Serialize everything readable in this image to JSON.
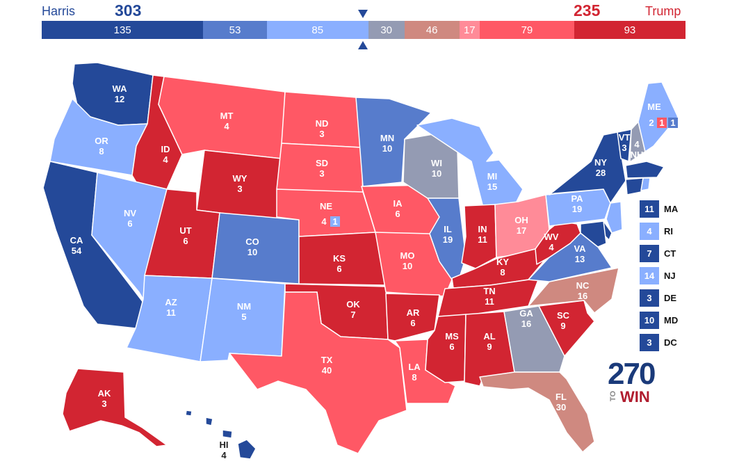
{
  "header": {
    "left_candidate": "Harris",
    "left_total": "303",
    "right_candidate": "Trump",
    "right_total": "235"
  },
  "colors": {
    "safe_d": "#244999",
    "likely_d": "#577ccc",
    "lean_d": "#8aafff",
    "tossup": "#949bb3",
    "tilt_r": "#cf8980",
    "lean_r_light": "#ff8b98",
    "likely_r": "#ff5865",
    "safe_r": "#d22532",
    "harris_text": "#244999",
    "trump_text": "#d22532"
  },
  "bar": [
    {
      "label": "135",
      "value": 135,
      "rating": "safe_d"
    },
    {
      "label": "53",
      "value": 53,
      "rating": "likely_d"
    },
    {
      "label": "85",
      "value": 85,
      "rating": "lean_d"
    },
    {
      "label": "30",
      "value": 30,
      "rating": "tossup"
    },
    {
      "label": "46",
      "value": 46,
      "rating": "tilt_r"
    },
    {
      "label": "17",
      "value": 17,
      "rating": "lean_r_light"
    },
    {
      "label": "79",
      "value": 79,
      "rating": "likely_r"
    },
    {
      "label": "93",
      "value": 93,
      "rating": "safe_r"
    }
  ],
  "states": {
    "WA": {
      "abbr": "WA",
      "ev": "12"
    },
    "OR": {
      "abbr": "OR",
      "ev": "8"
    },
    "CA": {
      "abbr": "CA",
      "ev": "54"
    },
    "ID": {
      "abbr": "ID",
      "ev": "4"
    },
    "NV": {
      "abbr": "NV",
      "ev": "6"
    },
    "MT": {
      "abbr": "MT",
      "ev": "4"
    },
    "WY": {
      "abbr": "WY",
      "ev": "3"
    },
    "UT": {
      "abbr": "UT",
      "ev": "6"
    },
    "AZ": {
      "abbr": "AZ",
      "ev": "11"
    },
    "CO": {
      "abbr": "CO",
      "ev": "10"
    },
    "NM": {
      "abbr": "NM",
      "ev": "5"
    },
    "ND": {
      "abbr": "ND",
      "ev": "3"
    },
    "SD": {
      "abbr": "SD",
      "ev": "3"
    },
    "NE": {
      "abbr": "NE",
      "ev": "4",
      "district": "1"
    },
    "KS": {
      "abbr": "KS",
      "ev": "6"
    },
    "OK": {
      "abbr": "OK",
      "ev": "7"
    },
    "TX": {
      "abbr": "TX",
      "ev": "40"
    },
    "MN": {
      "abbr": "MN",
      "ev": "10"
    },
    "IA": {
      "abbr": "IA",
      "ev": "6"
    },
    "MO": {
      "abbr": "MO",
      "ev": "10"
    },
    "AR": {
      "abbr": "AR",
      "ev": "6"
    },
    "LA": {
      "abbr": "LA",
      "ev": "8"
    },
    "WI": {
      "abbr": "WI",
      "ev": "10"
    },
    "IL": {
      "abbr": "IL",
      "ev": "19"
    },
    "MI": {
      "abbr": "MI",
      "ev": "15"
    },
    "IN": {
      "abbr": "IN",
      "ev": "11"
    },
    "OH": {
      "abbr": "OH",
      "ev": "17"
    },
    "KY": {
      "abbr": "KY",
      "ev": "8"
    },
    "TN": {
      "abbr": "TN",
      "ev": "11"
    },
    "MS": {
      "abbr": "MS",
      "ev": "6"
    },
    "AL": {
      "abbr": "AL",
      "ev": "9"
    },
    "GA": {
      "abbr": "GA",
      "ev": "16"
    },
    "FL": {
      "abbr": "FL",
      "ev": "30"
    },
    "SC": {
      "abbr": "SC",
      "ev": "9"
    },
    "NC": {
      "abbr": "NC",
      "ev": "16"
    },
    "VA": {
      "abbr": "VA",
      "ev": "13"
    },
    "WV": {
      "abbr": "WV",
      "ev": "4"
    },
    "PA": {
      "abbr": "PA",
      "ev": "19"
    },
    "NY": {
      "abbr": "NY",
      "ev": "28"
    },
    "VT": {
      "abbr": "VT",
      "ev": "3"
    },
    "NH": {
      "abbr": "NH",
      "ev": "4"
    },
    "ME": {
      "abbr": "ME",
      "ev": "2",
      "district1": "1",
      "district2": "1"
    },
    "AK": {
      "abbr": "AK",
      "ev": "3"
    },
    "HI": {
      "abbr": "HI",
      "ev": "4"
    }
  },
  "small_states": [
    {
      "ev": "11",
      "abbr": "MA",
      "rating": "safe_d"
    },
    {
      "ev": "4",
      "abbr": "RI",
      "rating": "lean_d"
    },
    {
      "ev": "7",
      "abbr": "CT",
      "rating": "safe_d"
    },
    {
      "ev": "14",
      "abbr": "NJ",
      "rating": "lean_d"
    },
    {
      "ev": "3",
      "abbr": "DE",
      "rating": "safe_d"
    },
    {
      "ev": "10",
      "abbr": "MD",
      "rating": "safe_d"
    },
    {
      "ev": "3",
      "abbr": "DC",
      "rating": "safe_d"
    }
  ],
  "logo": {
    "number": "270",
    "to": "TO",
    "win": "WIN"
  }
}
